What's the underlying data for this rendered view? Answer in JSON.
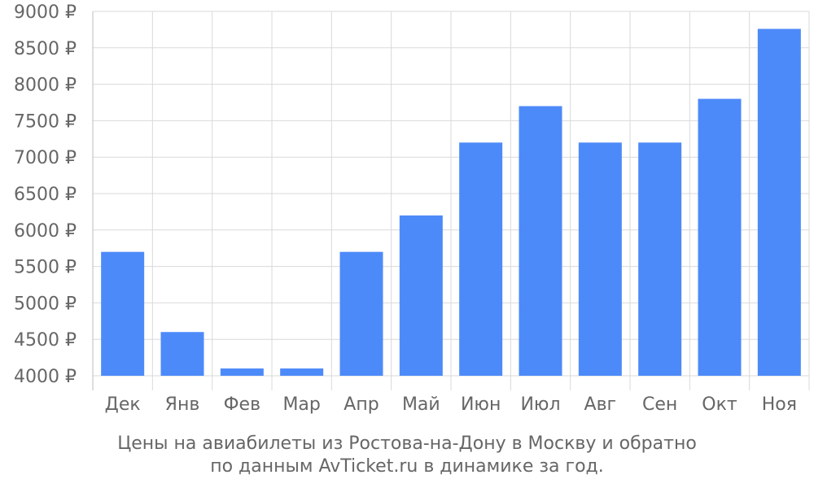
{
  "caption": {
    "line1": "Цены на авиабилеты из Ростова-на-Дону в Москву и обратно",
    "line2": "по данным AvTicket.ru в динамике за год."
  },
  "chart_data": {
    "type": "bar",
    "title": "",
    "xlabel": "",
    "ylabel": "",
    "categories": [
      "Дек",
      "Янв",
      "Фев",
      "Мар",
      "Апр",
      "Май",
      "Июн",
      "Июл",
      "Авг",
      "Сен",
      "Окт",
      "Ноя"
    ],
    "values": [
      5700,
      4600,
      4100,
      4100,
      5700,
      6200,
      7200,
      7700,
      7200,
      7200,
      7800,
      8760
    ],
    "ylim": [
      4000,
      9000
    ],
    "y_ticks": [
      4000,
      4500,
      5000,
      5500,
      6000,
      6500,
      7000,
      7500,
      8000,
      8500,
      9000
    ],
    "y_tick_suffix": " ₽",
    "bar_color": "#4d8af9",
    "grid": true,
    "grid_color": "#d9d9d9",
    "legend": "none"
  }
}
